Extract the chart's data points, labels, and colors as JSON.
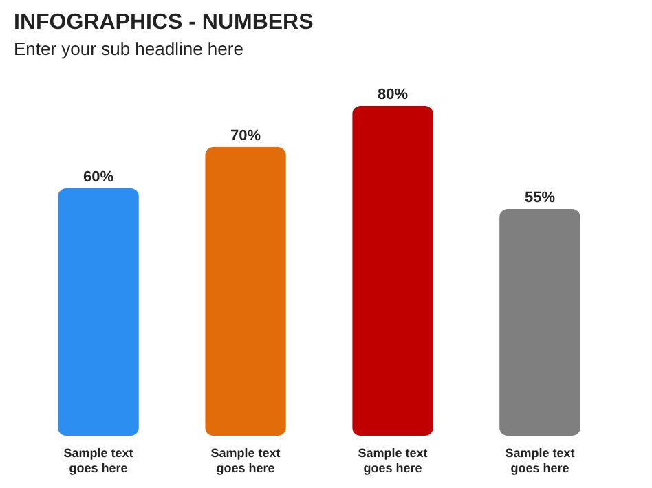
{
  "chart_data": {
    "type": "bar",
    "title": "INFOGRAPHICS - NUMBERS",
    "subtitle": "Enter your sub headline here",
    "categories": [
      "Sample text goes here",
      "Sample text goes here",
      "Sample text goes here",
      "Sample text goes here"
    ],
    "values": [
      60,
      70,
      80,
      55
    ],
    "colors": [
      "#2b8ef0",
      "#e36c0a",
      "#c00000",
      "#7f7f7f"
    ],
    "value_labels": [
      "60%",
      "70%",
      "80%",
      "55%"
    ]
  }
}
